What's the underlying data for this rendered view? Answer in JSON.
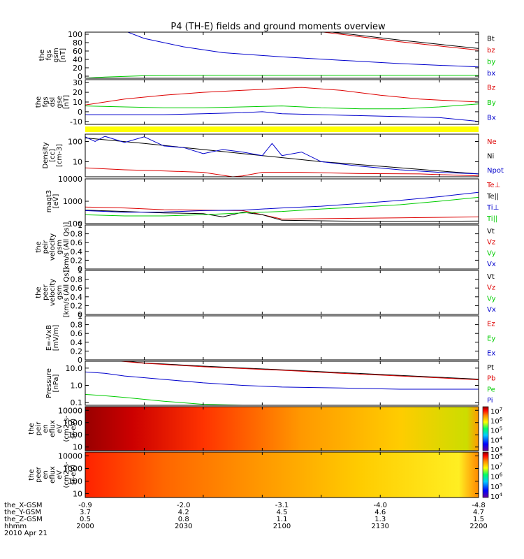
{
  "title": "P4 (TH-E) fields and ground moments overview",
  "colors": {
    "black": "#000000",
    "red": "#dd0000",
    "green": "#00cc00",
    "blue": "#0000cc",
    "yellow": "#ffff00"
  },
  "chart_data": [
    {
      "type": "line",
      "ylabel": [
        "the",
        "fgs",
        "gsm",
        "[nT]"
      ],
      "ylim": [
        -5,
        105
      ],
      "yticks": [
        0,
        20,
        40,
        60,
        80,
        100
      ],
      "legend": [
        {
          "name": "Bt",
          "color": "black"
        },
        {
          "name": "bz",
          "color": "red"
        },
        {
          "name": "by",
          "color": "green"
        },
        {
          "name": "bx",
          "color": "blue"
        }
      ],
      "series": [
        {
          "name": "Bt",
          "color": "black",
          "x": [
            2000,
            2116,
            2135,
            2160,
            2180,
            2200
          ],
          "y": [
            null,
            110,
            100,
            86,
            76,
            66
          ]
        },
        {
          "name": "bz",
          "color": "red",
          "x": [
            2000,
            2116,
            2135,
            2160,
            2180,
            2200
          ],
          "y": [
            null,
            108,
            97,
            82,
            72,
            62
          ]
        },
        {
          "name": "by",
          "color": "green",
          "x": [
            2000,
            2010,
            2030,
            2060,
            2100,
            2150,
            2200
          ],
          "y": [
            -5,
            -2,
            1,
            2,
            2,
            2,
            2
          ]
        },
        {
          "name": "bx",
          "color": "blue",
          "x": [
            2000,
            2020,
            2030,
            2050,
            2070,
            2100,
            2130,
            2160,
            2200
          ],
          "y": [
            200,
            108,
            90,
            70,
            56,
            46,
            38,
            30,
            22
          ]
        }
      ]
    },
    {
      "type": "line",
      "ylabel": [
        "the",
        "fgs",
        "dsl",
        "gse",
        "[nT]"
      ],
      "ylim": [
        -13,
        33
      ],
      "yticks": [
        -10,
        0,
        10,
        20,
        30
      ],
      "legend": [
        {
          "name": "Bz",
          "color": "red"
        },
        {
          "name": "By",
          "color": "green"
        },
        {
          "name": "Bx",
          "color": "blue"
        }
      ],
      "series": [
        {
          "name": "Bz",
          "color": "red",
          "x": [
            2000,
            2020,
            2040,
            2060,
            2080,
            2100,
            2110,
            2130,
            2150,
            2170,
            2200
          ],
          "y": [
            7,
            13,
            17,
            20,
            22,
            24,
            25,
            22,
            17,
            13,
            10
          ]
        },
        {
          "name": "By",
          "color": "green",
          "x": [
            2000,
            2020,
            2040,
            2060,
            2080,
            2100,
            2120,
            2140,
            2160,
            2180,
            2200
          ],
          "y": [
            6,
            5,
            4,
            4,
            5,
            6,
            4,
            3,
            3,
            5,
            8
          ]
        },
        {
          "name": "Bx",
          "color": "blue",
          "x": [
            2000,
            2020,
            2040,
            2060,
            2080,
            2090,
            2100,
            2120,
            2140,
            2160,
            2180,
            2200
          ],
          "y": [
            -3,
            -3,
            -3,
            -2,
            -1,
            0,
            -2,
            -3,
            -4,
            -5,
            -6,
            -10
          ]
        }
      ]
    },
    {
      "type": "line",
      "ylabel": [
        "Density",
        "[cc]",
        "[cm-3]"
      ],
      "scale": "log",
      "ylim": [
        1.8,
        230
      ],
      "yticks": [
        10,
        100
      ],
      "legend": [
        {
          "name": "Ne",
          "color": "red"
        },
        {
          "name": "Ni",
          "color": "black"
        },
        {
          "name": "Npot",
          "color": "blue"
        }
      ],
      "series": [
        {
          "name": "Ne",
          "color": "red",
          "x": [
            2000,
            2020,
            2040,
            2060,
            2075,
            2080,
            2090,
            2110,
            2140,
            2170,
            2200
          ],
          "y": [
            5,
            4,
            3.5,
            3,
            1.8,
            2,
            3,
            3,
            2.6,
            2.5,
            2
          ]
        },
        {
          "name": "Ni",
          "color": "black",
          "x": [
            2000,
            2030,
            2060,
            2090,
            2120,
            2150,
            2180,
            2200
          ],
          "y": [
            150,
            80,
            40,
            20,
            10,
            6,
            3.5,
            2.5
          ]
        },
        {
          "name": "Npot",
          "color": "blue",
          "x": [
            2000,
            2005,
            2010,
            2020,
            2030,
            2040,
            2050,
            2060,
            2070,
            2080,
            2090,
            2095,
            2100,
            2110,
            2120,
            2140,
            2160,
            2180,
            2200
          ],
          "y": [
            170,
            100,
            180,
            90,
            170,
            60,
            50,
            25,
            40,
            30,
            20,
            80,
            20,
            30,
            10,
            6,
            4,
            3,
            2.5
          ]
        }
      ]
    },
    {
      "type": "line",
      "ylabel": [
        "magt3",
        "[eV]"
      ],
      "scale": "log",
      "ylim": [
        100,
        10000
      ],
      "yticks": [
        100,
        1000,
        10000
      ],
      "legend": [
        {
          "name": "Te⊥",
          "color": "red"
        },
        {
          "name": "Te||",
          "color": "black"
        },
        {
          "name": "Ti⊥",
          "color": "blue"
        },
        {
          "name": "Ti||",
          "color": "green"
        }
      ],
      "series": [
        {
          "name": "Te⊥",
          "color": "red",
          "x": [
            2000,
            2020,
            2040,
            2060,
            2080,
            2090,
            2100,
            2130,
            2160,
            2200
          ],
          "y": [
            550,
            500,
            420,
            400,
            380,
            250,
            160,
            170,
            180,
            200
          ]
        },
        {
          "name": "Te||",
          "color": "black",
          "x": [
            2000,
            2020,
            2040,
            2060,
            2070,
            2080,
            2090,
            2100,
            2130,
            2160,
            2200
          ],
          "y": [
            400,
            350,
            300,
            280,
            200,
            320,
            250,
            140,
            130,
            125,
            130
          ]
        },
        {
          "name": "Ti⊥",
          "color": "blue",
          "x": [
            2000,
            2020,
            2040,
            2060,
            2080,
            2100,
            2120,
            2140,
            2160,
            2180,
            2200
          ],
          "y": [
            380,
            320,
            330,
            380,
            400,
            500,
            600,
            800,
            1100,
            1600,
            2500
          ]
        },
        {
          "name": "Ti||",
          "color": "green",
          "x": [
            2000,
            2020,
            2040,
            2060,
            2080,
            2100,
            2120,
            2140,
            2160,
            2180,
            2200
          ],
          "y": [
            250,
            220,
            220,
            250,
            300,
            350,
            450,
            550,
            700,
            1000,
            1500
          ]
        }
      ]
    },
    {
      "type": "line",
      "ylabel": [
        "the",
        "peir",
        "velocity",
        "gsm",
        "[km/s (All Qs)]"
      ],
      "ylim": [
        0,
        1
      ],
      "yticks": [
        0,
        0.2,
        0.4,
        0.6,
        0.8,
        1.0
      ],
      "legend": [
        {
          "name": "Vt",
          "color": "black"
        },
        {
          "name": "Vz",
          "color": "red"
        },
        {
          "name": "Vy",
          "color": "green"
        },
        {
          "name": "Vx",
          "color": "blue"
        }
      ],
      "series": []
    },
    {
      "type": "line",
      "ylabel": [
        "the",
        "peer",
        "velocity",
        "gsm",
        "[km/s (All Qs)]"
      ],
      "ylim": [
        0,
        1
      ],
      "yticks": [
        0,
        0.2,
        0.4,
        0.6,
        0.8,
        1.0
      ],
      "legend": [
        {
          "name": "Vt",
          "color": "black"
        },
        {
          "name": "Vz",
          "color": "red"
        },
        {
          "name": "Vy",
          "color": "green"
        },
        {
          "name": "Vx",
          "color": "blue"
        }
      ],
      "series": []
    },
    {
      "type": "line",
      "ylabel": [
        "E=-VxB",
        "[mV/m]"
      ],
      "ylim": [
        0,
        1
      ],
      "yticks": [
        0,
        0.2,
        0.4,
        0.6,
        0.8,
        1.0
      ],
      "legend": [
        {
          "name": "Ez",
          "color": "red"
        },
        {
          "name": "Ey",
          "color": "green"
        },
        {
          "name": "Ex",
          "color": "blue"
        }
      ],
      "series": []
    },
    {
      "type": "line",
      "ylabel": [
        "Pressure",
        "[nPa]"
      ],
      "scale": "log",
      "ylim": [
        0.07,
        25
      ],
      "yticks": [
        0.1,
        1.0,
        10.0
      ],
      "legend": [
        {
          "name": "Pt",
          "color": "black"
        },
        {
          "name": "Pb",
          "color": "red"
        },
        {
          "name": "Pe",
          "color": "green"
        },
        {
          "name": "Pi",
          "color": "blue"
        }
      ],
      "series": [
        {
          "name": "Pt",
          "color": "black",
          "x": [
            2000,
            2030,
            2060,
            2100,
            2130,
            2160,
            2200
          ],
          "y": [
            40,
            20,
            13,
            8,
            5.5,
            3.8,
            2.3
          ]
        },
        {
          "name": "Pb",
          "color": "red",
          "x": [
            2000,
            2030,
            2060,
            2100,
            2130,
            2160,
            2200
          ],
          "y": [
            38,
            19,
            12,
            7.5,
            5,
            3.5,
            2.1
          ]
        },
        {
          "name": "Pe",
          "color": "green",
          "x": [
            2000,
            2010,
            2020,
            2040,
            2060,
            2080,
            2100,
            2150,
            2200
          ],
          "y": [
            0.3,
            0.25,
            0.2,
            0.12,
            0.08,
            0.07,
            0.06,
            0.06,
            0.06
          ]
        },
        {
          "name": "Pi",
          "color": "blue",
          "x": [
            2000,
            2010,
            2020,
            2040,
            2060,
            2080,
            2100,
            2130,
            2160,
            2200
          ],
          "y": [
            6,
            5,
            3.5,
            2.2,
            1.4,
            1.0,
            0.8,
            0.7,
            0.6,
            0.6
          ]
        }
      ]
    },
    {
      "type": "heatmap",
      "ylabel": [
        "the",
        "peir",
        "en",
        "eflux",
        "eV",
        "(cm2-s-",
        "sr-eV)"
      ],
      "scale": "log",
      "ylim": [
        5,
        20000
      ],
      "yticks": [
        10,
        100,
        1000,
        10000
      ],
      "colorbar": {
        "labels": [
          "10^7",
          "10^6",
          "10^5",
          "10^4",
          "10^3"
        ]
      }
    },
    {
      "type": "heatmap",
      "ylabel": [
        "the",
        "peer",
        "en",
        "eflux",
        "eV",
        "(cm2-s-",
        "sr-eV)"
      ],
      "scale": "log",
      "ylim": [
        5,
        20000
      ],
      "yticks": [
        10,
        100,
        1000,
        10000
      ],
      "colorbar": {
        "labels": [
          "10^8",
          "10^7",
          "10^6",
          "10^5",
          "10^4"
        ]
      }
    }
  ],
  "xaxis": {
    "xlim": [
      2000,
      2200
    ],
    "rows": [
      {
        "label": "the_X-GSM",
        "values": [
          "-0.9",
          "-2.0",
          "-3.1",
          "-4.0",
          "-4.8"
        ]
      },
      {
        "label": "the_Y-GSM",
        "values": [
          "3.7",
          "4.2",
          "4.5",
          "4.6",
          "4.7"
        ]
      },
      {
        "label": "the_Z-GSM",
        "values": [
          "0.5",
          "0.8",
          "1.1",
          "1.3",
          "1.5"
        ]
      },
      {
        "label": "hhmm",
        "values": [
          "2000",
          "2030",
          "2100",
          "2130",
          "2200"
        ]
      }
    ],
    "date": "2010 Apr 21"
  }
}
